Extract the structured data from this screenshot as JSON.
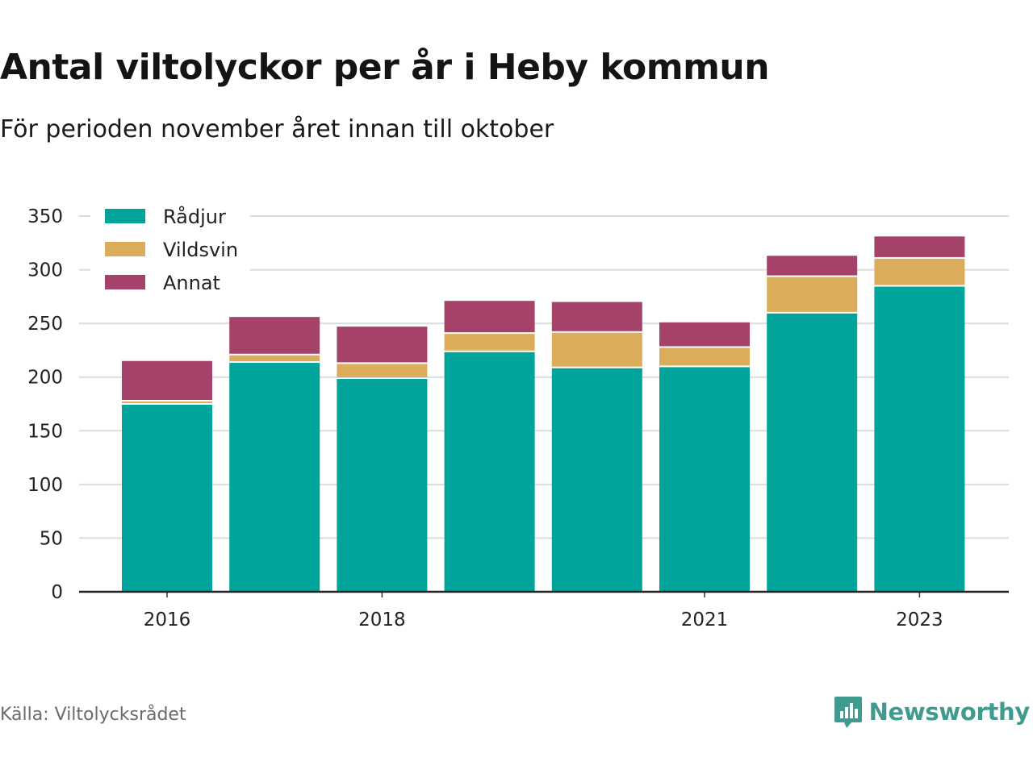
{
  "header": {
    "title": "Antal viltolyckor per år i Heby kommun",
    "subtitle": "För perioden november året innan till oktober"
  },
  "footer": {
    "source": "Källa: Viltolycksrådet",
    "brand": "Newsworthy",
    "brand_color": "#3f9b8f",
    "brand_icon": "bar-chart-speech-bubble-icon"
  },
  "chart_data": {
    "type": "bar",
    "stacked": true,
    "categories": [
      "2016",
      "2017",
      "2018",
      "2019",
      "2020",
      "2021",
      "2022",
      "2023"
    ],
    "x_tick_labels": [
      "2016",
      "",
      "2018",
      "",
      "",
      "2021",
      "",
      "2023"
    ],
    "series": [
      {
        "name": "Rådjur",
        "color": "#00a49a",
        "values": [
          175,
          214,
          199,
          224,
          209,
          210,
          260,
          285
        ]
      },
      {
        "name": "Vildsvin",
        "color": "#dbad5b",
        "values": [
          3,
          7,
          14,
          17,
          33,
          18,
          34,
          26
        ]
      },
      {
        "name": "Annat",
        "color": "#a5426a",
        "values": [
          37,
          35,
          34,
          30,
          28,
          23,
          19,
          20
        ]
      }
    ],
    "ylim": [
      0,
      350
    ],
    "yticks": [
      0,
      50,
      100,
      150,
      200,
      250,
      300,
      350
    ],
    "grid": true,
    "legend": "top-left"
  }
}
